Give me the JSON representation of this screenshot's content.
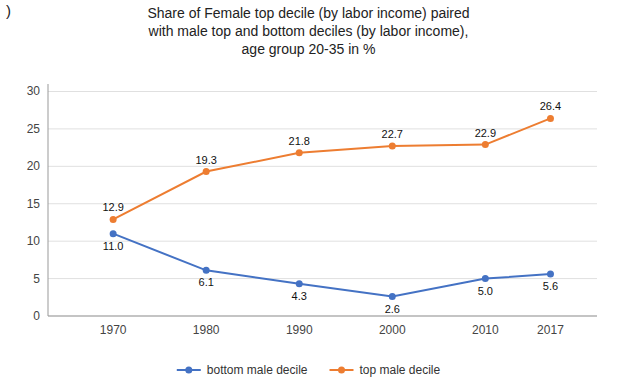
{
  "chart_data": {
    "type": "line",
    "title": "Share of Female top decile (by labor income) paired\nwith male top and bottom deciles (by labor income),\nage group 20-35 in %",
    "annotations": [
      {
        "text": ")"
      }
    ],
    "x": [
      1970,
      1980,
      1990,
      2000,
      2010,
      2017
    ],
    "series": [
      {
        "name": "bottom male decile",
        "color": "#4472C4",
        "marker": "circle",
        "values": [
          11.0,
          6.1,
          4.3,
          2.6,
          5.0,
          5.6
        ],
        "value_labels": [
          "11.0",
          "6.1",
          "4.3",
          "2.6",
          "5.0",
          "5.6"
        ]
      },
      {
        "name": "top male decile",
        "color": "#ED7D31",
        "marker": "circle",
        "values": [
          12.9,
          19.3,
          21.8,
          22.7,
          22.9,
          26.4
        ],
        "value_labels": [
          "12.9",
          "19.3",
          "21.8",
          "22.7",
          "22.9",
          "26.4"
        ]
      }
    ],
    "xlim": [
      1963,
      2022
    ],
    "xticks": [
      1970,
      1980,
      1990,
      2000,
      2010,
      2017
    ],
    "ylim": [
      0,
      31
    ],
    "yticks": [
      0,
      5,
      10,
      15,
      20,
      25,
      30
    ],
    "grid": true,
    "legend": "bottom",
    "data_labels": true
  }
}
